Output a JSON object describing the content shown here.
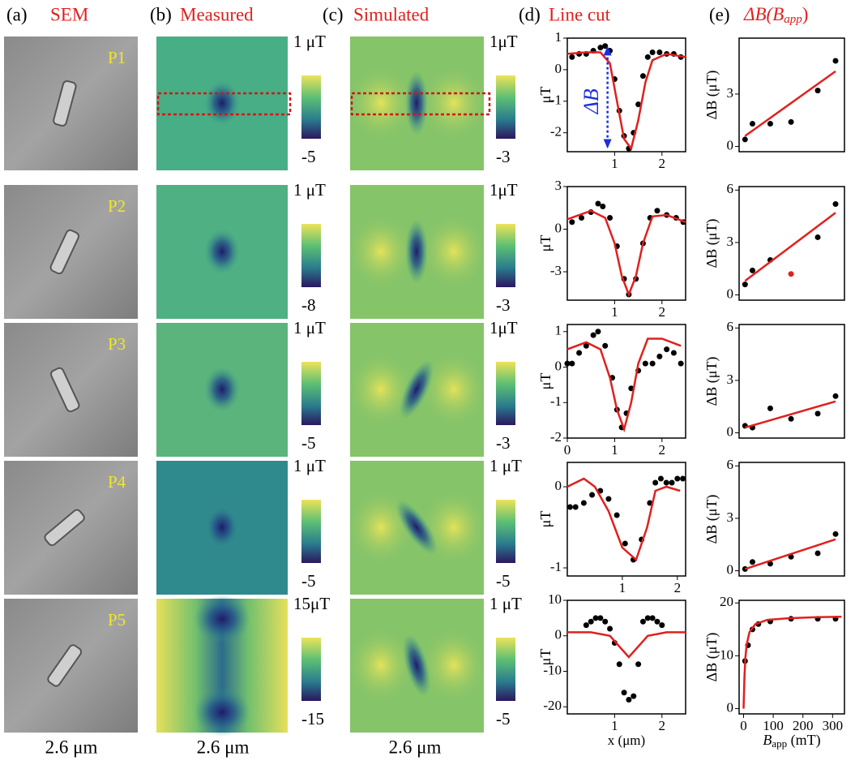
{
  "figure": {
    "headings": [
      {
        "tag": "(a)",
        "title": "SEM"
      },
      {
        "tag": "(b)",
        "title": "Measured"
      },
      {
        "tag": "(c)",
        "title": "Simulated"
      },
      {
        "tag": "(d)",
        "title": "Line cut"
      },
      {
        "tag": "(e)",
        "title": {
          "main": "ΔB(B",
          "sub": "app",
          "close": ")"
        }
      }
    ],
    "rows": [
      {
        "label": "P1",
        "measured_bar": [
          "1 μT",
          "-5"
        ],
        "simulated_bar": [
          "1μT",
          "-3"
        ]
      },
      {
        "label": "P2",
        "measured_bar": [
          "1 μT",
          "-8"
        ],
        "simulated_bar": [
          "1μT",
          "-3"
        ]
      },
      {
        "label": "P3",
        "measured_bar": [
          "1 μT",
          "-5"
        ],
        "simulated_bar": [
          "1μT",
          "-3"
        ]
      },
      {
        "label": "P4",
        "measured_bar": [
          "1 μT",
          "-5"
        ],
        "simulated_bar": [
          "1 μT",
          "-5"
        ]
      },
      {
        "label": "P5",
        "measured_bar": [
          "15μT",
          "-15"
        ],
        "simulated_bar": [
          "1 μT",
          "-5"
        ]
      }
    ],
    "scale_labels": [
      "2.6 μm",
      "2.6 μm",
      "2.6 μm"
    ]
  },
  "chart_data": [
    {
      "type": "line",
      "ylabel": "μT",
      "annotation": "ΔB",
      "xlim": [
        0,
        2.5
      ],
      "xticks": [
        1,
        2
      ],
      "ylim": [
        -2.6,
        1.0
      ],
      "yticks": [
        -2,
        -1,
        0,
        1
      ],
      "series": [
        {
          "mode": "markers",
          "color": "#000000",
          "x": [
            0.1,
            0.25,
            0.4,
            0.55,
            0.7,
            0.8,
            0.9,
            1.0,
            1.1,
            1.2,
            1.3,
            1.4,
            1.5,
            1.6,
            1.7,
            1.8,
            1.95,
            2.1,
            2.25,
            2.4
          ],
          "values": [
            0.4,
            0.5,
            0.5,
            0.6,
            0.7,
            0.75,
            0.6,
            -0.3,
            -1.3,
            -2.1,
            -2.5,
            -2.0,
            -1.1,
            -0.2,
            0.4,
            0.55,
            0.55,
            0.5,
            0.5,
            0.4
          ]
        },
        {
          "mode": "lines",
          "color": "#e0201e",
          "x": [
            0,
            0.4,
            0.7,
            0.9,
            1.05,
            1.2,
            1.35,
            1.5,
            1.65,
            1.8,
            2.1,
            2.5
          ],
          "values": [
            0.5,
            0.55,
            0.55,
            0.2,
            -1.0,
            -2.2,
            -2.5,
            -1.6,
            -0.4,
            0.3,
            0.5,
            0.4
          ]
        }
      ]
    },
    {
      "type": "line",
      "ylabel": "μT",
      "xlim": [
        0,
        2.5
      ],
      "xticks": [
        1,
        2
      ],
      "ylim": [
        -5,
        3
      ],
      "yticks": [
        -3,
        0,
        3
      ],
      "series": [
        {
          "mode": "markers",
          "color": "#000000",
          "x": [
            0.1,
            0.3,
            0.5,
            0.65,
            0.75,
            0.9,
            1.05,
            1.2,
            1.3,
            1.45,
            1.6,
            1.75,
            1.9,
            2.1,
            2.3,
            2.45
          ],
          "values": [
            0.5,
            0.8,
            1.2,
            1.8,
            1.6,
            0.8,
            -1.2,
            -3.5,
            -4.6,
            -3.5,
            -1.0,
            0.8,
            1.3,
            1.0,
            0.8,
            0.5
          ]
        },
        {
          "mode": "lines",
          "color": "#e0201e",
          "x": [
            0,
            0.5,
            0.8,
            1.0,
            1.15,
            1.3,
            1.45,
            1.6,
            1.8,
            2.1,
            2.5
          ],
          "values": [
            0.7,
            1.3,
            0.8,
            -1.0,
            -3.3,
            -4.6,
            -3.3,
            -1.0,
            0.9,
            1.0,
            0.5
          ]
        }
      ]
    },
    {
      "type": "line",
      "ylabel": "μT",
      "xlim": [
        0,
        2.5
      ],
      "xticks": [
        0,
        1,
        2
      ],
      "ylim": [
        -2,
        1.2
      ],
      "yticks": [
        -2,
        -1,
        0,
        1
      ],
      "series": [
        {
          "mode": "markers",
          "color": "#000000",
          "x": [
            0,
            0.1,
            0.25,
            0.4,
            0.55,
            0.65,
            0.8,
            0.95,
            1.05,
            1.15,
            1.25,
            1.35,
            1.5,
            1.65,
            1.8,
            1.95,
            2.1,
            2.25,
            2.4
          ],
          "values": [
            0.1,
            0.1,
            0.4,
            0.6,
            0.9,
            1.0,
            0.6,
            -0.3,
            -1.2,
            -1.7,
            -1.3,
            -0.6,
            -0.1,
            0.1,
            0.1,
            0.3,
            0.5,
            0.4,
            0.1
          ]
        },
        {
          "mode": "lines",
          "color": "#e0201e",
          "x": [
            0,
            0.4,
            0.7,
            0.9,
            1.05,
            1.2,
            1.35,
            1.5,
            1.7,
            2.0,
            2.4
          ],
          "values": [
            0.5,
            0.7,
            0.5,
            -0.3,
            -1.2,
            -1.75,
            -1.0,
            0.1,
            0.8,
            0.8,
            0.6
          ]
        }
      ]
    },
    {
      "type": "line",
      "ylabel": "μT",
      "xlim": [
        0,
        2.15
      ],
      "xticks": [
        1,
        2
      ],
      "ylim": [
        -1.1,
        0.3
      ],
      "yticks": [
        -1,
        0
      ],
      "series": [
        {
          "mode": "markers",
          "color": "#000000",
          "x": [
            0.05,
            0.15,
            0.3,
            0.45,
            0.6,
            0.75,
            0.9,
            1.05,
            1.2,
            1.35,
            1.5,
            1.6,
            1.7,
            1.8,
            1.9,
            2.0,
            2.1
          ],
          "values": [
            -0.25,
            -0.25,
            -0.2,
            -0.1,
            -0.05,
            -0.15,
            -0.35,
            -0.7,
            -0.9,
            -0.65,
            -0.2,
            0.05,
            0.1,
            0.05,
            0.05,
            0.1,
            0.1
          ]
        },
        {
          "mode": "lines",
          "color": "#e0201e",
          "x": [
            0,
            0.3,
            0.5,
            0.75,
            1.0,
            1.25,
            1.45,
            1.6,
            1.8,
            2.05
          ],
          "values": [
            0,
            0.1,
            0.0,
            -0.3,
            -0.75,
            -0.9,
            -0.5,
            -0.05,
            0.0,
            -0.05
          ]
        }
      ]
    },
    {
      "type": "line",
      "ylabel": "μT",
      "xlabel": "x (μm)",
      "xlim": [
        0,
        2.5
      ],
      "xticks": [
        1,
        2
      ],
      "ylim": [
        -22,
        10
      ],
      "yticks": [
        -20,
        -10,
        0,
        10
      ],
      "series": [
        {
          "mode": "markers",
          "color": "#000000",
          "x": [
            0.4,
            0.5,
            0.6,
            0.7,
            0.8,
            0.9,
            1.0,
            1.1,
            1.2,
            1.3,
            1.4,
            1.5,
            1.6,
            1.7,
            1.8,
            1.9,
            2.0
          ],
          "values": [
            3,
            4,
            5,
            5,
            4,
            2,
            -2,
            -8,
            -16,
            -18,
            -17,
            -8,
            4,
            5,
            5,
            4,
            3
          ]
        },
        {
          "mode": "lines",
          "color": "#e0201e",
          "x": [
            0,
            0.5,
            0.9,
            1.1,
            1.3,
            1.5,
            1.7,
            2.1,
            2.5
          ],
          "values": [
            1,
            1,
            0,
            -3,
            -6,
            -3,
            0,
            1,
            1
          ]
        }
      ]
    },
    {
      "type": "line",
      "ylabel": "ΔB (μT)",
      "xlim": [
        -15,
        340
      ],
      "ylim": [
        -0.3,
        6.2
      ],
      "yticks": [
        0,
        3
      ],
      "series": [
        {
          "mode": "markers",
          "color": "#000000",
          "x": [
            5,
            30,
            90,
            160,
            250,
            310
          ],
          "values": [
            0.4,
            1.3,
            1.3,
            1.4,
            3.2,
            4.9
          ]
        },
        {
          "mode": "lines",
          "color": "#e0201e",
          "x": [
            5,
            310
          ],
          "values": [
            0.6,
            4.3
          ]
        }
      ]
    },
    {
      "type": "line",
      "ylabel": "ΔB (μT)",
      "xlim": [
        -15,
        340
      ],
      "ylim": [
        -0.3,
        6.2
      ],
      "yticks": [
        0,
        3,
        6
      ],
      "series": [
        {
          "mode": "markers",
          "color": "#000000",
          "x": [
            5,
            30,
            90,
            250,
            310
          ],
          "values": [
            0.6,
            1.4,
            2.0,
            3.3,
            5.2
          ]
        },
        {
          "mode": "markers",
          "color": "#e0201e",
          "x": [
            160
          ],
          "values": [
            1.2
          ]
        },
        {
          "mode": "lines",
          "color": "#e0201e",
          "x": [
            5,
            310
          ],
          "values": [
            0.8,
            4.7
          ]
        }
      ]
    },
    {
      "type": "line",
      "ylabel": "ΔB (μT)",
      "xlim": [
        -15,
        340
      ],
      "ylim": [
        -0.3,
        6.2
      ],
      "yticks": [
        0,
        3,
        6
      ],
      "series": [
        {
          "mode": "markers",
          "color": "#000000",
          "x": [
            5,
            30,
            90,
            160,
            250,
            310
          ],
          "values": [
            0.4,
            0.3,
            1.4,
            0.8,
            1.1,
            2.1
          ]
        },
        {
          "mode": "lines",
          "color": "#e0201e",
          "x": [
            5,
            310
          ],
          "values": [
            0.3,
            1.8
          ]
        }
      ]
    },
    {
      "type": "line",
      "ylabel": "ΔB (μT)",
      "xlim": [
        -15,
        340
      ],
      "ylim": [
        -0.3,
        6.2
      ],
      "yticks": [
        0,
        3,
        6
      ],
      "series": [
        {
          "mode": "markers",
          "color": "#000000",
          "x": [
            5,
            30,
            90,
            160,
            250,
            310
          ],
          "values": [
            0.1,
            0.5,
            0.4,
            0.8,
            1.0,
            2.1
          ]
        },
        {
          "mode": "lines",
          "color": "#e0201e",
          "x": [
            5,
            310
          ],
          "values": [
            0.1,
            1.8
          ]
        }
      ]
    },
    {
      "type": "line",
      "ylabel": "ΔB (μT)",
      "xlabel": {
        "main": "B",
        "sub": "app",
        "rest": " (mT)"
      },
      "xlim": [
        -15,
        340
      ],
      "xticks": [
        0,
        100,
        200,
        300
      ],
      "ylim": [
        -1,
        20.5
      ],
      "yticks": [
        0,
        10,
        20
      ],
      "series": [
        {
          "mode": "markers",
          "color": "#000000",
          "x": [
            5,
            15,
            30,
            50,
            90,
            160,
            250,
            310
          ],
          "values": [
            9,
            12,
            15,
            16,
            16.5,
            17,
            17,
            17
          ]
        },
        {
          "mode": "lines",
          "color": "#e0201e",
          "x": [
            0,
            3,
            6,
            10,
            20,
            40,
            80,
            150,
            250,
            330
          ],
          "values": [
            0,
            6,
            9.5,
            12,
            14.5,
            16,
            16.8,
            17.1,
            17.3,
            17.4
          ]
        }
      ]
    }
  ]
}
